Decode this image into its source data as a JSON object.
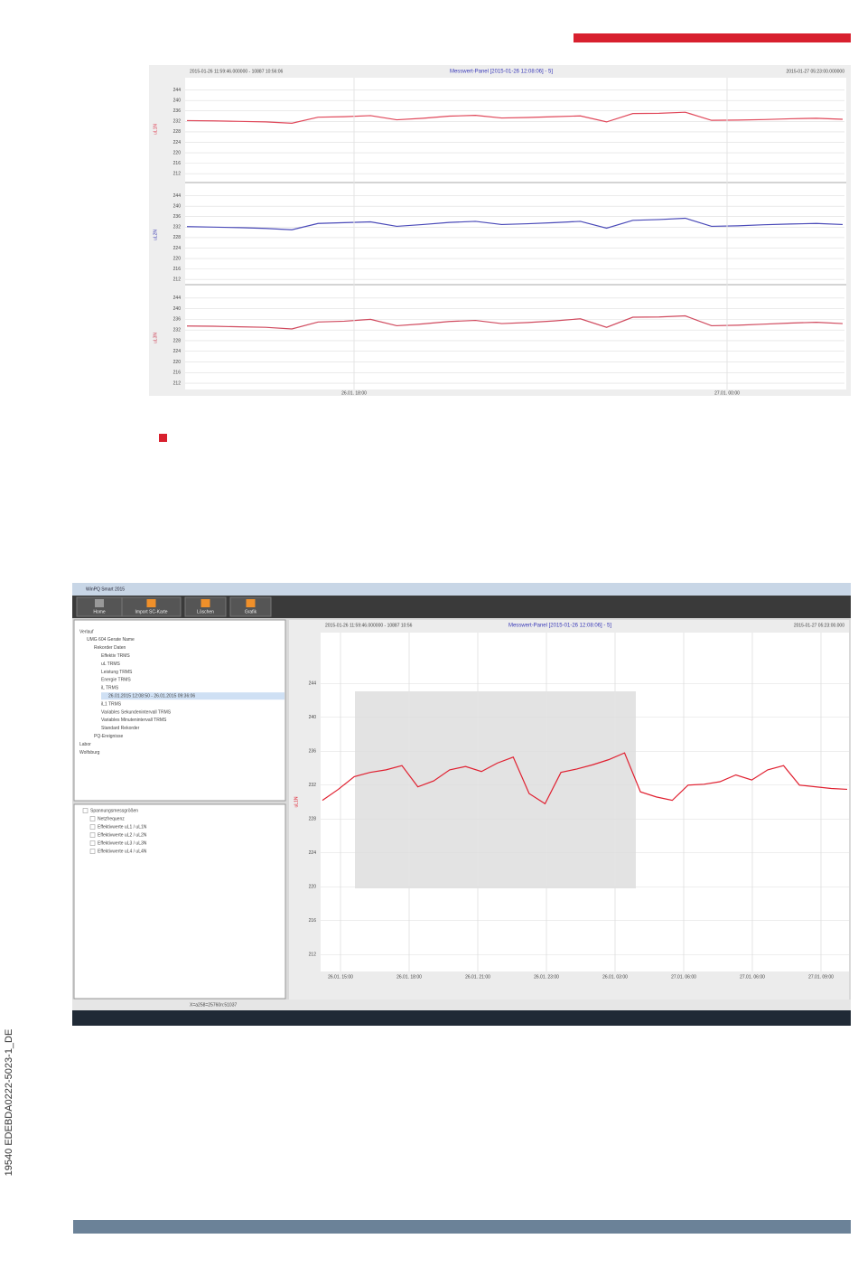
{
  "side_label": "19540 EDEBDA0222-5023-1_DE",
  "figure1": {
    "header_left": "2015-01-26 11:59:46.000000 - 10887 10:56:06",
    "header_center": "Messwert-Panel [2015-01-26 12:08:06] - 5]",
    "header_right": "2015-01-27 05:23:00.000000",
    "x_labels": [
      "26.01. 18:00",
      "27.01. 00:00"
    ],
    "panels": [
      {
        "ylabel": "uL1N",
        "color": "#e0485a",
        "ylim": [
          210,
          248
        ],
        "yticks": [
          244,
          240,
          236,
          232,
          228,
          224,
          220,
          216,
          212
        ],
        "values": [
          232.3,
          232.2,
          232,
          231.8,
          231.3,
          233.6,
          233.8,
          234.2,
          232.6,
          233.2,
          234,
          234.3,
          233.3,
          233.5,
          233.8,
          234.1,
          231.8,
          235,
          235.1,
          235.5,
          232.4,
          232.5,
          232.7,
          233,
          233.2,
          232.8
        ]
      },
      {
        "ylabel": "uL2N",
        "color": "#4a4ab8",
        "ylim": [
          210,
          248
        ],
        "yticks": [
          244,
          240,
          236,
          232,
          228,
          224,
          220,
          216,
          212
        ],
        "values": [
          232.2,
          232,
          231.8,
          231.5,
          231,
          233.4,
          233.7,
          234,
          232.3,
          233,
          233.8,
          234.2,
          233,
          233.3,
          233.7,
          234.2,
          231.6,
          234.6,
          234.9,
          235.4,
          232.3,
          232.5,
          232.9,
          233.2,
          233.4,
          233
        ]
      },
      {
        "ylabel": "uL3N",
        "color": "#d04a5e",
        "ylim": [
          210,
          248
        ],
        "yticks": [
          244,
          240,
          236,
          232,
          228,
          224,
          220,
          216,
          212
        ],
        "values": [
          233.5,
          233.4,
          233.2,
          233,
          232.4,
          235,
          235.3,
          236,
          233.6,
          234.3,
          235.2,
          235.6,
          234.4,
          234.8,
          235.4,
          236.2,
          233,
          236.8,
          236.9,
          237.3,
          233.6,
          233.8,
          234.2,
          234.6,
          234.9,
          234.4
        ]
      }
    ]
  },
  "figure2": {
    "window_title": "WinPQ Smart 2015",
    "toolbar": [
      "Home",
      "Import SC-Karte",
      "Löschen",
      "Grafik"
    ],
    "tree": [
      "Verlauf",
      "UMG 604 Gerate Name",
      "Rekorder Daten",
      "Effektiv TRMS",
      "uL TRMS",
      "Leistung TRMS",
      "Energie TRMS",
      "iL TRMS",
      "26.01.2015 12:08:50 - 26.01.2015 09:36:06",
      "iL1 TRMS",
      "Variables Sekundenintervall TRMS",
      "Variables Minutenintervall TRMS",
      "Standard Rekorder",
      "PQ-Ereignisse",
      "Labor",
      "Wolfsburg"
    ],
    "list": [
      "Spannungsmessgrößen",
      "Netzfrequenz",
      "Effektivwerte uL1 / uL1N",
      "Effektivwerte uL2 / uL2N",
      "Effektivwerte uL3 / uL3N",
      "Effektivwerte uL4 / uL4N"
    ],
    "header_left": "2015-01-26 11:59:46.000000 - 10887 10:56",
    "header_center": "Messwert-Panel [2015-01-26 12:08:06] - 5]",
    "header_right": "2015-01-27 05:23:00.000",
    "ylabel": "uL1N",
    "color": "#e02030",
    "ylim": [
      210,
      250
    ],
    "yticks": [
      244,
      240,
      236,
      232,
      228,
      224,
      220,
      216,
      212
    ],
    "x_labels": [
      "26.01. 15:00",
      "26.01. 18:00",
      "26.01. 21:00",
      "26.01. 23:00",
      "26.01. 03:00",
      "27.01. 06:00",
      "27.01. 06:00",
      "27.01. 09:00"
    ],
    "values": [
      230.2,
      231.5,
      233,
      233.5,
      233.8,
      234.3,
      231.8,
      232.5,
      233.8,
      234.2,
      233.6,
      234.6,
      235.3,
      231,
      229.8,
      233.5,
      233.9,
      234.4,
      235,
      235.8,
      231.2,
      230.6,
      230.2,
      232,
      232.1,
      232.4,
      233.2,
      232.6,
      233.8,
      234.3,
      232,
      231.8,
      231.6,
      231.5
    ],
    "status": "X=a258=25760n:51037"
  }
}
